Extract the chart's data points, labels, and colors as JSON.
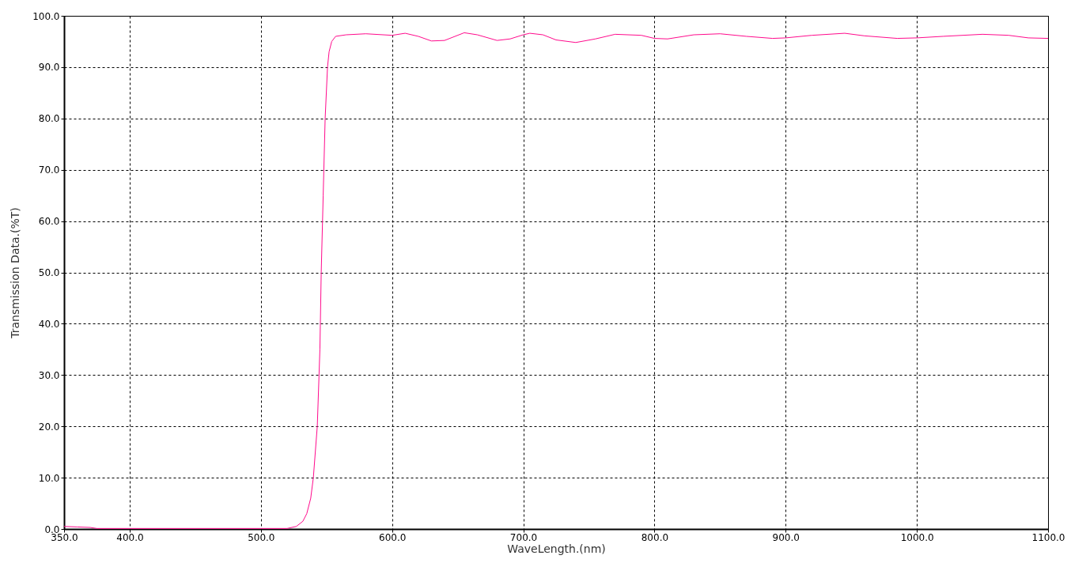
{
  "chart_data": {
    "type": "line",
    "xlabel": "WaveLength.(nm)",
    "ylabel": "Transmission Data.(%T)",
    "xlim": [
      350,
      1100
    ],
    "ylim": [
      0,
      100
    ],
    "xticks": [
      {
        "value": 350,
        "label": "350.0"
      },
      {
        "value": 400,
        "label": "400.0"
      },
      {
        "value": 500,
        "label": "500.0"
      },
      {
        "value": 600,
        "label": "600.0"
      },
      {
        "value": 700,
        "label": "700.0"
      },
      {
        "value": 800,
        "label": "800.0"
      },
      {
        "value": 900,
        "label": "900.0"
      },
      {
        "value": 1000,
        "label": "1000.0"
      },
      {
        "value": 1100,
        "label": "1100.0"
      }
    ],
    "yticks": [
      {
        "value": 0,
        "label": "0.0"
      },
      {
        "value": 10,
        "label": "10.0"
      },
      {
        "value": 20,
        "label": "20.0"
      },
      {
        "value": 30,
        "label": "30.0"
      },
      {
        "value": 40,
        "label": "40.0"
      },
      {
        "value": 50,
        "label": "50.0"
      },
      {
        "value": 60,
        "label": "60.0"
      },
      {
        "value": 70,
        "label": "70.0"
      },
      {
        "value": 80,
        "label": "80.0"
      },
      {
        "value": 90,
        "label": "90.0"
      },
      {
        "value": 100,
        "label": "100.0"
      }
    ],
    "grid": true,
    "series": [
      {
        "color": "#ff0a8c",
        "x": [
          350,
          360,
          370,
          375,
          400,
          450,
          500,
          520,
          527,
          532,
          535,
          538,
          540,
          543,
          545,
          546,
          547.5,
          549,
          550.8,
          552,
          554,
          557,
          565,
          580,
          600,
          610,
          620,
          630,
          640,
          655,
          665,
          680,
          690,
          700,
          705,
          715,
          725,
          740,
          755,
          770,
          790,
          800,
          810,
          830,
          850,
          870,
          890,
          900,
          920,
          945,
          960,
          985,
          1000,
          1020,
          1050,
          1070,
          1085,
          1100
        ],
        "values": [
          0.5,
          0.4,
          0.3,
          0.1,
          0.1,
          0.1,
          0.1,
          0.1,
          0.5,
          1.5,
          3,
          6,
          10,
          20,
          35,
          50,
          65,
          80,
          90,
          93,
          95,
          96,
          96.3,
          96.5,
          96.2,
          96.6,
          96,
          95.1,
          95.2,
          96.7,
          96.3,
          95.2,
          95.5,
          96.3,
          96.6,
          96.3,
          95.3,
          94.8,
          95.5,
          96.4,
          96.2,
          95.6,
          95.5,
          96.3,
          96.5,
          96,
          95.6,
          95.7,
          96.2,
          96.6,
          96.1,
          95.6,
          95.7,
          96,
          96.4,
          96.2,
          95.7,
          95.6
        ]
      }
    ]
  }
}
